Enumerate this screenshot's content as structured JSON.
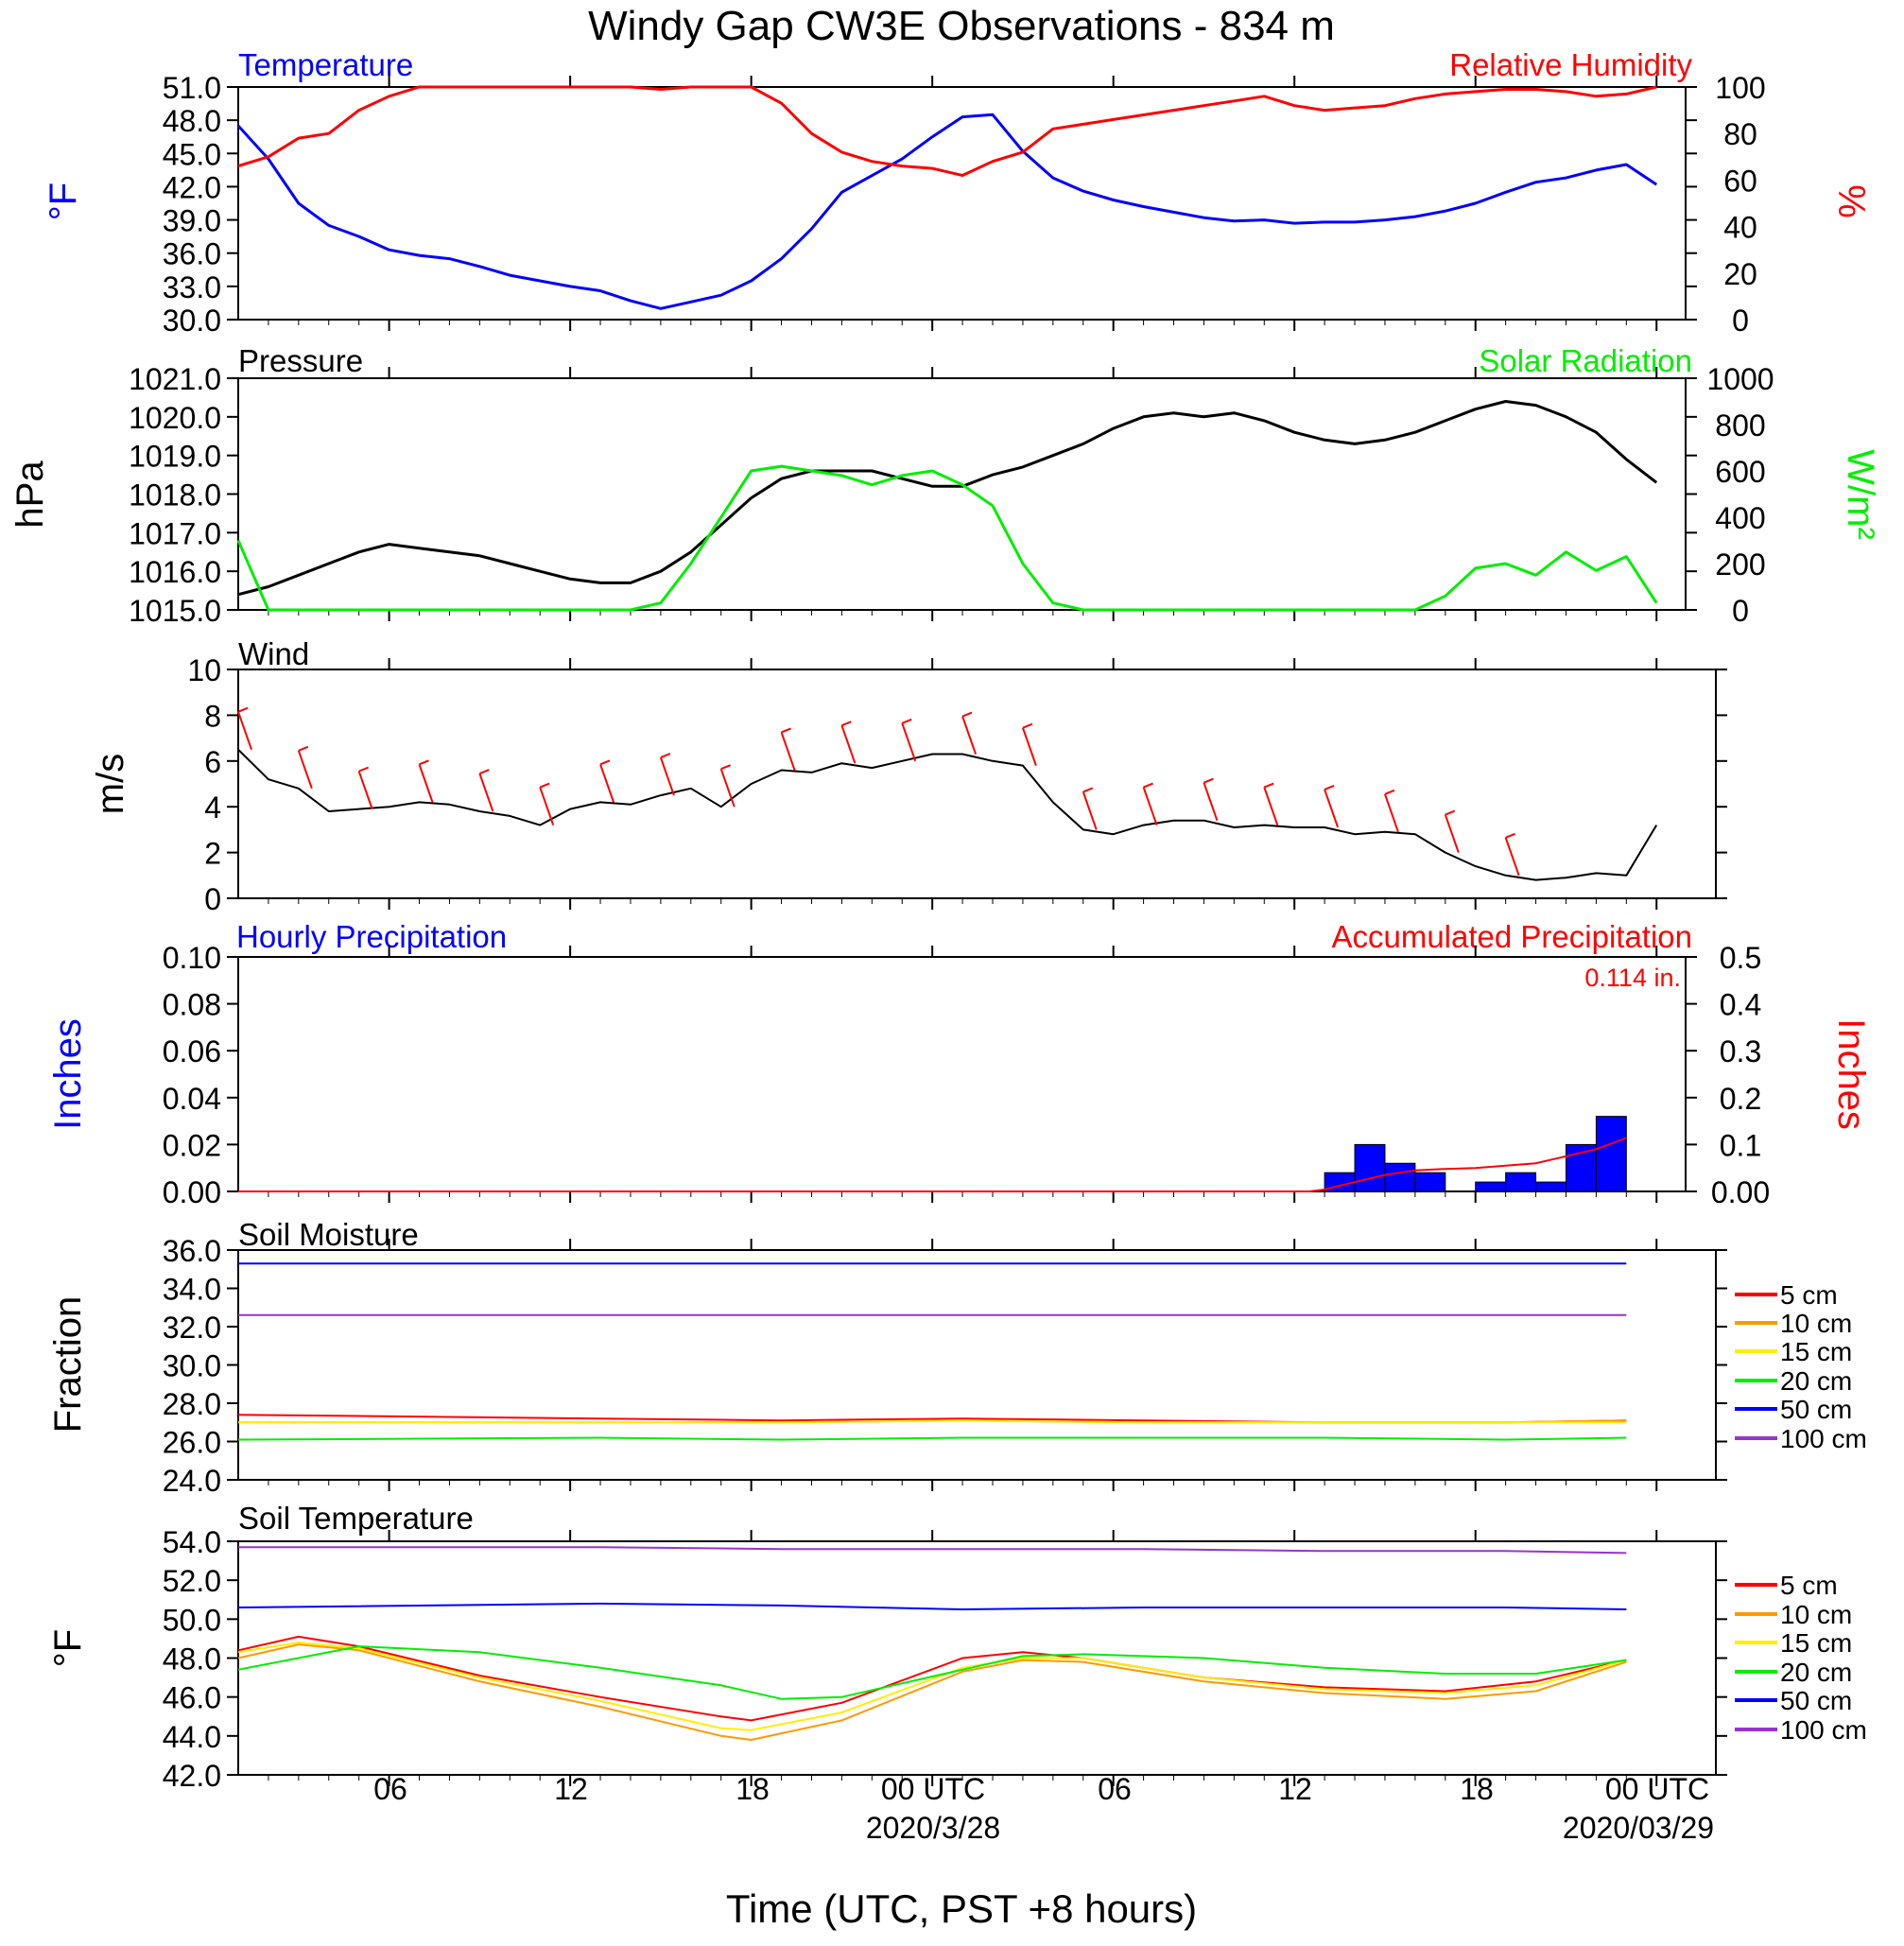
{
  "title": "Windy Gap CW3E Observations - 834 m",
  "xlabel": "Time (UTC, PST +8 hours)",
  "x_ticks": [
    "06",
    "12",
    "18",
    "00 UTC",
    "06",
    "12",
    "18",
    "00 UTC"
  ],
  "x_dates": [
    "2020/3/28",
    "2020/03/29"
  ],
  "colors": {
    "blue": "#0000ff",
    "red": "#ff0000",
    "green": "#00ee00",
    "black": "#000000",
    "orange": "#ff9900",
    "yellow": "#ffee00",
    "purple": "#9933cc"
  },
  "panels": {
    "temp_rh": {
      "left_title": "Temperature",
      "right_title": "Relative Humidity",
      "ylabel_left": "°F",
      "ylabel_right": "%",
      "ticks_left": [
        "51.0",
        "48.0",
        "45.0",
        "42.0",
        "39.0",
        "36.0",
        "33.0",
        "30.0"
      ],
      "ticks_right": [
        "100",
        "80",
        "60",
        "40",
        "20",
        "0"
      ]
    },
    "pressure_solar": {
      "left_title": "Pressure",
      "right_title": "Solar Radiation",
      "ylabel_left": "hPa",
      "ylabel_right": "W/m²",
      "ticks_left": [
        "1021.0",
        "1020.0",
        "1019.0",
        "1018.0",
        "1017.0",
        "1016.0",
        "1015.0"
      ],
      "ticks_right": [
        "1000",
        "800",
        "600",
        "400",
        "200",
        "0"
      ]
    },
    "wind": {
      "left_title": "Wind",
      "ylabel_left": "m/s",
      "ticks_left": [
        "10",
        "8",
        "6",
        "4",
        "2",
        "0"
      ]
    },
    "precip": {
      "left_title": "Hourly Precipitation",
      "right_title": "Accumulated Precipitation",
      "total_label": "0.114 in.",
      "ylabel_left": "Inches",
      "ylabel_right": "Inches",
      "ticks_left": [
        "0.10",
        "0.08",
        "0.06",
        "0.04",
        "0.02",
        "0.00"
      ],
      "ticks_right": [
        "0.5",
        "0.4",
        "0.3",
        "0.2",
        "0.1",
        "0.00"
      ]
    },
    "soil_moisture": {
      "left_title": "Soil Moisture",
      "ylabel_left": "Fraction",
      "ticks_left": [
        "36.0",
        "34.0",
        "32.0",
        "30.0",
        "28.0",
        "26.0",
        "24.0"
      ]
    },
    "soil_temp": {
      "left_title": "Soil Temperature",
      "ylabel_left": "°F",
      "ticks_left": [
        "54.0",
        "52.0",
        "50.0",
        "48.0",
        "46.0",
        "44.0",
        "42.0"
      ]
    }
  },
  "legend": {
    "depths": [
      "5 cm",
      "10 cm",
      "15 cm",
      "20 cm",
      "50 cm",
      "100 cm"
    ]
  },
  "chart_data": [
    {
      "type": "line",
      "panel": "temp_rh",
      "x_unit": "hours since 2020-03-27 01 UTC",
      "series": [
        {
          "name": "Temperature",
          "axis": "left",
          "unit": "°F",
          "x": [
            0,
            1,
            2,
            3,
            4,
            5,
            6,
            7,
            8,
            9,
            10,
            11,
            12,
            13,
            14,
            15,
            16,
            17,
            18,
            19,
            20,
            21,
            22,
            23,
            24,
            25,
            26,
            27,
            28,
            29,
            30,
            31,
            32,
            33,
            34,
            35,
            36,
            37,
            38,
            39,
            40,
            41,
            42,
            43,
            44,
            45,
            46,
            47
          ],
          "values": [
            47.5,
            44.5,
            40.5,
            38.5,
            37.5,
            36.3,
            35.8,
            35.5,
            34.8,
            34.0,
            33.5,
            33.0,
            32.6,
            31.7,
            31.0,
            31.6,
            32.2,
            33.5,
            35.5,
            38.2,
            41.5,
            43.0,
            44.5,
            46.5,
            48.3,
            48.5,
            45.2,
            42.8,
            41.6,
            40.8,
            40.2,
            39.7,
            39.2,
            38.9,
            39.0,
            38.7,
            38.8,
            38.8,
            39.0,
            39.3,
            39.8,
            40.5,
            41.5,
            42.4,
            42.8,
            43.5,
            44.0,
            42.2
          ]
        },
        {
          "name": "Relative Humidity",
          "axis": "right",
          "unit": "%",
          "x": [
            0,
            1,
            2,
            3,
            4,
            5,
            6,
            7,
            8,
            9,
            10,
            11,
            12,
            13,
            14,
            15,
            16,
            17,
            18,
            19,
            20,
            21,
            22,
            23,
            24,
            25,
            26,
            27,
            28,
            29,
            30,
            31,
            32,
            33,
            34,
            35,
            36,
            37,
            38,
            39,
            40,
            41,
            42,
            43,
            44,
            45,
            46,
            47
          ],
          "values": [
            66,
            70,
            78,
            80,
            90,
            96,
            100,
            100,
            100,
            100,
            100,
            100,
            100,
            100,
            99,
            100,
            100,
            100,
            93,
            80,
            72,
            68,
            66,
            65,
            62,
            68,
            72,
            82,
            84,
            86,
            88,
            90,
            92,
            94,
            96,
            92,
            90,
            91,
            92,
            95,
            97,
            98,
            99,
            99,
            98,
            96,
            97,
            100
          ]
        }
      ],
      "ylim_left": [
        30,
        51
      ],
      "ylim_right": [
        0,
        100
      ]
    },
    {
      "type": "line",
      "panel": "pressure_solar",
      "x_unit": "hours since 2020-03-27 01 UTC",
      "series": [
        {
          "name": "Pressure",
          "axis": "left",
          "unit": "hPa",
          "x": [
            0,
            1,
            2,
            3,
            4,
            5,
            6,
            7,
            8,
            9,
            10,
            11,
            12,
            13,
            14,
            15,
            16,
            17,
            18,
            19,
            20,
            21,
            22,
            23,
            24,
            25,
            26,
            27,
            28,
            29,
            30,
            31,
            32,
            33,
            34,
            35,
            36,
            37,
            38,
            39,
            40,
            41,
            42,
            43,
            44,
            45,
            46,
            47
          ],
          "values": [
            1015.4,
            1015.6,
            1015.9,
            1016.2,
            1016.5,
            1016.7,
            1016.6,
            1016.5,
            1016.4,
            1016.2,
            1016.0,
            1015.8,
            1015.7,
            1015.7,
            1016.0,
            1016.5,
            1017.2,
            1017.9,
            1018.4,
            1018.6,
            1018.6,
            1018.6,
            1018.4,
            1018.2,
            1018.2,
            1018.5,
            1018.7,
            1019.0,
            1019.3,
            1019.7,
            1020.0,
            1020.1,
            1020.0,
            1020.1,
            1019.9,
            1019.6,
            1019.4,
            1019.3,
            1019.4,
            1019.6,
            1019.9,
            1020.2,
            1020.4,
            1020.3,
            1020.0,
            1019.6,
            1018.9,
            1018.3
          ]
        },
        {
          "name": "Solar Radiation",
          "axis": "right",
          "unit": "W/m²",
          "x": [
            0,
            1,
            2,
            3,
            4,
            5,
            6,
            7,
            8,
            9,
            10,
            11,
            12,
            13,
            14,
            15,
            16,
            17,
            18,
            19,
            20,
            21,
            22,
            23,
            24,
            25,
            26,
            27,
            28,
            29,
            30,
            31,
            32,
            33,
            34,
            35,
            36,
            37,
            38,
            39,
            40,
            41,
            42,
            43,
            44,
            45,
            46,
            47
          ],
          "values": [
            300,
            0,
            0,
            0,
            0,
            0,
            0,
            0,
            0,
            0,
            0,
            0,
            0,
            0,
            30,
            200,
            400,
            600,
            620,
            600,
            580,
            540,
            580,
            600,
            540,
            450,
            200,
            30,
            0,
            0,
            0,
            0,
            0,
            0,
            0,
            0,
            0,
            0,
            0,
            0,
            60,
            180,
            200,
            150,
            250,
            170,
            230,
            30
          ]
        }
      ],
      "ylim_left": [
        1015,
        1021
      ],
      "ylim_right": [
        0,
        1000
      ]
    },
    {
      "type": "line",
      "panel": "wind",
      "x_unit": "hours since 2020-03-27 01 UTC",
      "series": [
        {
          "name": "Wind",
          "unit": "m/s",
          "x": [
            0,
            1,
            2,
            3,
            4,
            5,
            6,
            7,
            8,
            9,
            10,
            11,
            12,
            13,
            14,
            15,
            16,
            17,
            18,
            19,
            20,
            21,
            22,
            23,
            24,
            25,
            26,
            27,
            28,
            29,
            30,
            31,
            32,
            33,
            34,
            35,
            36,
            37,
            38,
            39,
            40,
            41,
            42,
            43,
            44,
            45,
            46,
            47
          ],
          "values": [
            6.5,
            5.2,
            4.8,
            3.8,
            3.9,
            4.0,
            4.2,
            4.1,
            3.8,
            3.6,
            3.2,
            3.9,
            4.2,
            4.1,
            4.5,
            4.8,
            4.0,
            5.0,
            5.6,
            5.5,
            5.9,
            5.7,
            6.0,
            6.3,
            6.3,
            6.0,
            5.8,
            4.2,
            3.0,
            2.8,
            3.2,
            3.4,
            3.4,
            3.1,
            3.2,
            3.1,
            3.1,
            2.8,
            2.9,
            2.8,
            2.0,
            1.4,
            1.0,
            0.8,
            0.9,
            1.1,
            1.0,
            3.2
          ]
        }
      ],
      "ylim": [
        0,
        10
      ]
    },
    {
      "type": "bar",
      "panel": "precip",
      "x_unit": "hours since 2020-03-27 01 UTC",
      "series": [
        {
          "name": "Hourly Precipitation",
          "axis": "left",
          "unit": "Inches",
          "x": [
            36,
            37,
            38,
            39,
            41,
            42,
            43,
            44,
            45
          ],
          "values": [
            0.008,
            0.02,
            0.012,
            0.008,
            0.004,
            0.008,
            0.004,
            0.02,
            0.032
          ]
        },
        {
          "name": "Accumulated Precipitation",
          "axis": "right",
          "type": "line",
          "unit": "Inches",
          "x": [
            0,
            35.5,
            36,
            37,
            38,
            39,
            40,
            41,
            42,
            43,
            44,
            45,
            46
          ],
          "values": [
            0,
            0,
            0.004,
            0.02,
            0.035,
            0.045,
            0.048,
            0.05,
            0.055,
            0.06,
            0.075,
            0.09,
            0.114
          ]
        }
      ],
      "ylim_left": [
        0,
        0.1
      ],
      "ylim_right": [
        0,
        0.5
      ]
    },
    {
      "type": "line",
      "panel": "soil_moisture",
      "x_unit": "hours since 2020-03-27 01 UTC",
      "series": [
        {
          "name": "5 cm",
          "x": [
            0,
            12,
            18,
            24,
            30,
            36,
            42,
            46
          ],
          "values": [
            27.4,
            27.2,
            27.1,
            27.2,
            27.1,
            27.0,
            27.0,
            27.1
          ]
        },
        {
          "name": "10 cm",
          "x": [
            0,
            12,
            18,
            24,
            30,
            36,
            42,
            46
          ],
          "values": [
            27.0,
            27.0,
            27.0,
            27.1,
            27.0,
            27.0,
            27.0,
            27.1
          ]
        },
        {
          "name": "15 cm",
          "x": [
            0,
            12,
            18,
            24,
            30,
            36,
            42,
            46
          ],
          "values": [
            27.0,
            27.0,
            27.0,
            27.1,
            27.0,
            27.0,
            27.0,
            27.0
          ]
        },
        {
          "name": "20 cm",
          "x": [
            0,
            12,
            18,
            24,
            30,
            36,
            42,
            46
          ],
          "values": [
            26.1,
            26.2,
            26.1,
            26.2,
            26.2,
            26.2,
            26.1,
            26.2
          ]
        },
        {
          "name": "50 cm",
          "x": [
            0,
            12,
            18,
            24,
            30,
            36,
            42,
            46
          ],
          "values": [
            35.3,
            35.3,
            35.3,
            35.3,
            35.3,
            35.3,
            35.3,
            35.3
          ]
        },
        {
          "name": "100 cm",
          "x": [
            0,
            12,
            18,
            24,
            30,
            36,
            42,
            46
          ],
          "values": [
            32.6,
            32.6,
            32.6,
            32.6,
            32.6,
            32.6,
            32.6,
            32.6
          ]
        }
      ],
      "ylim": [
        24,
        36
      ]
    },
    {
      "type": "line",
      "panel": "soil_temp",
      "x_unit": "hours since 2020-03-27 01 UTC",
      "series": [
        {
          "name": "5 cm",
          "x": [
            0,
            2,
            4,
            8,
            12,
            16,
            17,
            20,
            24,
            26,
            28,
            32,
            36,
            40,
            43,
            46
          ],
          "values": [
            48.4,
            49.1,
            48.6,
            47.1,
            46.0,
            45.0,
            44.8,
            45.7,
            48.0,
            48.3,
            48.0,
            47.0,
            46.5,
            46.3,
            46.8,
            47.9
          ]
        },
        {
          "name": "10 cm",
          "x": [
            0,
            2,
            4,
            8,
            12,
            16,
            17,
            20,
            24,
            26,
            28,
            32,
            36,
            40,
            43,
            46
          ],
          "values": [
            48.0,
            48.7,
            48.4,
            46.8,
            45.5,
            44.0,
            43.8,
            44.8,
            47.3,
            47.9,
            47.8,
            46.8,
            46.2,
            45.9,
            46.3,
            47.8
          ]
        },
        {
          "name": "15 cm",
          "x": [
            0,
            2,
            4,
            8,
            12,
            16,
            17,
            20,
            24,
            26,
            28,
            32,
            36,
            40,
            43,
            46
          ],
          "values": [
            48.3,
            48.8,
            48.5,
            47.0,
            45.8,
            44.4,
            44.3,
            45.2,
            47.5,
            48.0,
            48.0,
            47.0,
            46.4,
            46.2,
            46.6,
            47.9
          ]
        },
        {
          "name": "20 cm",
          "x": [
            0,
            4,
            8,
            12,
            16,
            18,
            20,
            24,
            26,
            28,
            32,
            36,
            40,
            43,
            46
          ],
          "values": [
            47.4,
            48.6,
            48.3,
            47.5,
            46.6,
            45.9,
            46.0,
            47.4,
            48.1,
            48.2,
            48.0,
            47.5,
            47.2,
            47.2,
            47.9
          ]
        },
        {
          "name": "50 cm",
          "x": [
            0,
            12,
            18,
            24,
            30,
            36,
            42,
            46
          ],
          "values": [
            50.6,
            50.8,
            50.7,
            50.5,
            50.6,
            50.6,
            50.6,
            50.5
          ]
        },
        {
          "name": "100 cm",
          "x": [
            0,
            12,
            18,
            24,
            30,
            36,
            42,
            46
          ],
          "values": [
            53.7,
            53.7,
            53.6,
            53.6,
            53.6,
            53.5,
            53.5,
            53.4
          ]
        }
      ],
      "ylim": [
        42,
        54
      ]
    }
  ]
}
